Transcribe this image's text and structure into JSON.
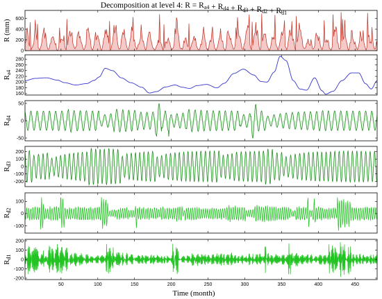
{
  "chart_data": {
    "type": "line",
    "title": "Decomposition at level 4: R = Ra4 + Rd4 + Rd3 + Rd2 + Rd1",
    "xlabel": "Time (month)",
    "xlim": [
      1,
      480
    ],
    "xticks": [
      50,
      100,
      150,
      200,
      250,
      300,
      350,
      400,
      450
    ],
    "grid": false,
    "panels": [
      {
        "name": "R (mm)",
        "ylim": [
          0,
          750
        ],
        "yticks": [
          0,
          200,
          400,
          600
        ],
        "color": "#c0392b",
        "fill": "#f6c9c9",
        "kind": "rain",
        "seed": 11,
        "amp": 1.0
      },
      {
        "name": "Ra4",
        "ylim": [
          155,
          295
        ],
        "yticks": [
          160,
          180,
          200,
          220,
          240,
          260,
          280
        ],
        "color": "#3333cc",
        "fill": "",
        "kind": "smooth",
        "points": [
          [
            1,
            205
          ],
          [
            15,
            213
          ],
          [
            30,
            215
          ],
          [
            45,
            207
          ],
          [
            55,
            198
          ],
          [
            70,
            190
          ],
          [
            85,
            195
          ],
          [
            95,
            206
          ],
          [
            102,
            218
          ],
          [
            110,
            248
          ],
          [
            120,
            240
          ],
          [
            132,
            215
          ],
          [
            145,
            198
          ],
          [
            160,
            182
          ],
          [
            170,
            162
          ],
          [
            180,
            167
          ],
          [
            192,
            183
          ],
          [
            205,
            190
          ],
          [
            215,
            182
          ],
          [
            225,
            178
          ],
          [
            235,
            188
          ],
          [
            248,
            192
          ],
          [
            262,
            180
          ],
          [
            272,
            196
          ],
          [
            285,
            230
          ],
          [
            298,
            245
          ],
          [
            312,
            225
          ],
          [
            322,
            202
          ],
          [
            330,
            200
          ],
          [
            340,
            235
          ],
          [
            348,
            290
          ],
          [
            356,
            275
          ],
          [
            366,
            205
          ],
          [
            375,
            176
          ],
          [
            384,
            172
          ],
          [
            395,
            215
          ],
          [
            405,
            170
          ],
          [
            410,
            158
          ],
          [
            420,
            168
          ],
          [
            432,
            205
          ],
          [
            445,
            232
          ],
          [
            455,
            232
          ],
          [
            464,
            195
          ],
          [
            472,
            176
          ],
          [
            480,
            205
          ]
        ]
      },
      {
        "name": "Rd4",
        "ylim": [
          -58,
          58
        ],
        "yticks": [
          -50,
          0,
          50
        ],
        "color": "#1e8a1e",
        "fill": "#d7f2d7",
        "kind": "wave",
        "seed": 23,
        "period": 16.5,
        "baseAmp": 28,
        "burstAmp": 55
      },
      {
        "name": "Rd3",
        "ylim": [
          -270,
          270
        ],
        "yticks": [
          -200,
          -100,
          0,
          100,
          200
        ],
        "color": "#1e8a1e",
        "fill": "#d7f2d7",
        "kind": "wave",
        "seed": 37,
        "period": 12,
        "baseAmp": 215,
        "burstAmp": 240
      },
      {
        "name": "Rd2",
        "ylim": [
          -160,
          170
        ],
        "yticks": [
          -100,
          0,
          100
        ],
        "color": "#22c322",
        "fill": "#d9f7d9",
        "kind": "noise",
        "seed": 51,
        "period": 5.8,
        "baseAmp": 50,
        "burstAmp": 150
      },
      {
        "name": "Rd1",
        "ylim": [
          -215,
          215
        ],
        "yticks": [
          -200,
          -100,
          0,
          100,
          200
        ],
        "color": "#22c322",
        "fill": "#d9f7d9",
        "kind": "noise",
        "seed": 77,
        "period": 2.2,
        "baseAmp": 55,
        "burstAmp": 195
      }
    ]
  }
}
